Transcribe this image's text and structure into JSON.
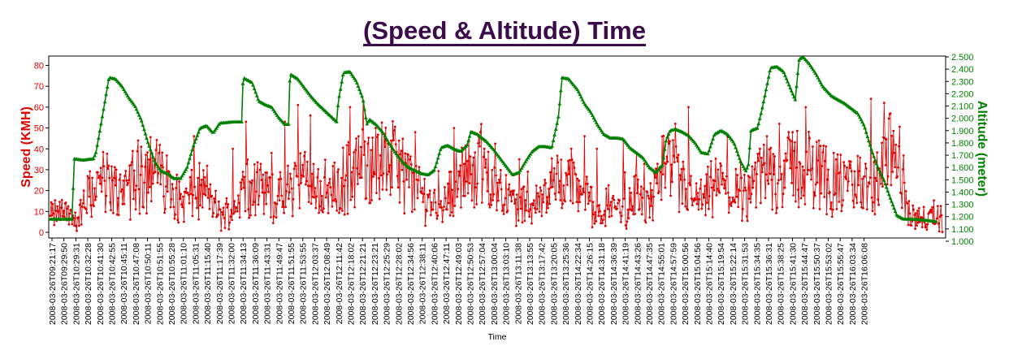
{
  "chart_data": {
    "type": "line",
    "title": "(Speed & Altitude) Time",
    "xlabel": "Time",
    "ylabel_left": "Speed (KMH)",
    "ylabel_right": "Altitude (meter)",
    "ylim_left": [
      0,
      83
    ],
    "ylim_right": [
      1000,
      2500
    ],
    "yticks_left": [
      "0",
      "10",
      "20",
      "30",
      "40",
      "50",
      "60",
      "70",
      "80"
    ],
    "yticks_right": [
      "1.000",
      "1.100",
      "1.200",
      "1.300",
      "1.400",
      "1.500",
      "1.600",
      "1.700",
      "1.800",
      "1.900",
      "2.000",
      "2.100",
      "2.200",
      "2.300",
      "2.400",
      "2.500"
    ],
    "x_tick_labels": [
      "2008-03-26T09:21:17",
      "2008-03-26T09:29:50",
      "2008-03-26T10:29:31",
      "2008-03-26T10:32:28",
      "2008-03-26T10:41:30",
      "2008-03-26T10:42:55",
      "2008-03-26T10:45:11",
      "2008-03-26T10:47:08",
      "2008-03-26T10:50:11",
      "2008-03-26T10:51:55",
      "2008-03-26T10:55:28",
      "2008-03-26T11:01:10",
      "2008-03-26T11:05:31",
      "2008-03-26T11:15:40",
      "2008-03-26T11:17:39",
      "2008-03-26T11:32:00",
      "2008-03-26T11:34:13",
      "2008-03-26T11:36:09",
      "2008-03-26T11:43:31",
      "2008-03-26T11:49:47",
      "2008-03-26T11:51:55",
      "2008-03-26T11:53:55",
      "2008-03-26T12:03:37",
      "2008-03-26T12:08:49",
      "2008-03-26T12:11:42",
      "2008-03-26T12:18:02",
      "2008-03-26T12:21:21",
      "2008-03-26T12:23:21",
      "2008-03-26T12:25:29",
      "2008-03-26T12:28:02",
      "2008-03-26T12:34:56",
      "2008-03-26T12:38:11",
      "2008-03-26T12:40:06",
      "2008-03-26T12:47:11",
      "2008-03-26T12:49:03",
      "2008-03-26T12:50:53",
      "2008-03-26T12:57:04",
      "2008-03-26T13:00:04",
      "2008-03-26T13:03:10",
      "2008-03-26T13:11:38",
      "2008-03-26T13:13:55",
      "2008-03-26T13:17:42",
      "2008-03-26T13:20:05",
      "2008-03-26T13:25:36",
      "2008-03-26T14:22:34",
      "2008-03-26T14:26:15",
      "2008-03-26T14:31:18",
      "2008-03-26T14:36:39",
      "2008-03-26T14:41:19",
      "2008-03-26T14:43:26",
      "2008-03-26T14:47:35",
      "2008-03-26T14:55:01",
      "2008-03-26T14:57:59",
      "2008-03-26T15:00:56",
      "2008-03-26T15:04:56",
      "2008-03-26T15:14:40",
      "2008-03-26T15:19:54",
      "2008-03-26T15:22:14",
      "2008-03-26T15:31:53",
      "2008-03-26T15:34:35",
      "2008-03-26T15:36:31",
      "2008-03-26T15:38:25",
      "2008-03-26T15:41:30",
      "2008-03-26T15:44:47",
      "2008-03-26T15:50:37",
      "2008-03-26T15:53:02",
      "2008-03-26T15:55:47",
      "2008-03-26T16:03:34",
      "2008-03-26T16:06:08"
    ],
    "legend": "none",
    "grid": false,
    "series": [
      {
        "name": "Speed (KMH)",
        "axis": "left",
        "color": "#e00000",
        "marker": "circle",
        "anchors": [
          [
            0,
            8
          ],
          [
            1,
            10
          ],
          [
            2,
            5
          ],
          [
            3,
            18
          ],
          [
            4,
            25
          ],
          [
            5,
            20
          ],
          [
            6,
            22
          ],
          [
            7,
            28
          ],
          [
            8,
            30
          ],
          [
            9,
            24
          ],
          [
            10,
            14
          ],
          [
            11,
            18
          ],
          [
            12,
            20
          ],
          [
            13,
            8
          ],
          [
            14,
            10
          ],
          [
            15,
            25
          ],
          [
            16,
            22
          ],
          [
            17,
            18
          ],
          [
            18,
            15
          ],
          [
            19,
            28
          ],
          [
            20,
            22
          ],
          [
            21,
            20
          ],
          [
            22,
            20
          ],
          [
            23,
            28
          ],
          [
            24,
            32
          ],
          [
            25,
            30
          ],
          [
            26,
            36
          ],
          [
            27,
            30
          ],
          [
            28,
            22
          ],
          [
            29,
            16
          ],
          [
            30,
            12
          ],
          [
            31,
            24
          ],
          [
            32,
            28
          ],
          [
            33,
            32
          ],
          [
            34,
            26
          ],
          [
            35,
            18
          ],
          [
            36,
            12
          ],
          [
            37,
            14
          ],
          [
            38,
            18
          ],
          [
            39,
            26
          ],
          [
            40,
            24
          ],
          [
            41,
            20
          ],
          [
            42,
            6
          ],
          [
            43,
            14
          ],
          [
            44,
            10
          ],
          [
            45,
            18
          ],
          [
            46,
            14
          ],
          [
            47,
            30
          ],
          [
            48,
            26
          ],
          [
            49,
            18
          ],
          [
            50,
            14
          ],
          [
            51,
            22
          ],
          [
            52,
            18
          ],
          [
            53,
            16
          ],
          [
            54,
            24
          ],
          [
            55,
            28
          ],
          [
            56,
            26
          ],
          [
            57,
            32
          ],
          [
            58,
            30
          ],
          [
            59,
            28
          ],
          [
            60,
            24
          ],
          [
            61,
            22
          ],
          [
            62,
            24
          ],
          [
            63,
            18
          ],
          [
            64,
            32
          ],
          [
            65,
            38
          ],
          [
            66,
            8
          ],
          [
            67,
            6
          ],
          [
            68,
            6
          ]
        ],
        "spikes": [
          [
            7,
            41
          ],
          [
            8,
            35
          ],
          [
            11,
            46
          ],
          [
            14,
            40
          ],
          [
            15,
            53
          ],
          [
            17,
            38
          ],
          [
            18,
            53
          ],
          [
            19,
            61
          ],
          [
            20,
            56
          ],
          [
            23,
            60
          ],
          [
            24,
            63
          ],
          [
            25,
            50
          ],
          [
            28,
            48
          ],
          [
            31,
            50
          ],
          [
            33,
            48
          ],
          [
            36,
            35
          ],
          [
            40,
            40
          ],
          [
            41,
            46
          ],
          [
            42,
            40
          ],
          [
            44,
            44
          ],
          [
            45,
            38
          ],
          [
            48,
            52
          ],
          [
            49,
            60
          ],
          [
            52,
            46
          ],
          [
            53,
            34
          ],
          [
            55,
            46
          ],
          [
            56,
            52
          ],
          [
            57,
            48
          ],
          [
            58,
            60
          ],
          [
            59,
            44
          ],
          [
            63,
            64
          ],
          [
            64,
            62
          ]
        ]
      },
      {
        "name": "Altitude (meter)",
        "axis": "right",
        "color": "#008000",
        "marker": "triangle",
        "anchors": [
          [
            0,
            1180
          ],
          [
            1,
            1180
          ],
          [
            1.7,
            1180
          ],
          [
            1.8,
            1670
          ],
          [
            2.5,
            1660
          ],
          [
            3.3,
            1670
          ],
          [
            3.5,
            1720
          ],
          [
            4.0,
            2020
          ],
          [
            4.5,
            2330
          ],
          [
            5.0,
            2320
          ],
          [
            5.5,
            2260
          ],
          [
            6.0,
            2170
          ],
          [
            6.5,
            2100
          ],
          [
            7.0,
            1980
          ],
          [
            7.5,
            1800
          ],
          [
            8.0,
            1650
          ],
          [
            8.5,
            1570
          ],
          [
            9.0,
            1550
          ],
          [
            9.5,
            1510
          ],
          [
            10.0,
            1510
          ],
          [
            10.5,
            1600
          ],
          [
            11.0,
            1780
          ],
          [
            11.5,
            1920
          ],
          [
            12.0,
            1940
          ],
          [
            12.5,
            1880
          ],
          [
            13.0,
            1960
          ],
          [
            14.0,
            1970
          ],
          [
            14.7,
            1970
          ],
          [
            14.8,
            2330
          ],
          [
            15.5,
            2290
          ],
          [
            16.0,
            2140
          ],
          [
            16.5,
            2110
          ],
          [
            17.0,
            2090
          ],
          [
            17.5,
            2010
          ],
          [
            18.0,
            1950
          ],
          [
            18.3,
            1950
          ],
          [
            18.4,
            2360
          ],
          [
            19.0,
            2320
          ],
          [
            19.5,
            2250
          ],
          [
            20.0,
            2180
          ],
          [
            20.5,
            2120
          ],
          [
            21.0,
            2070
          ],
          [
            21.5,
            2020
          ],
          [
            22.0,
            1970
          ],
          [
            22.1,
            2130
          ],
          [
            22.5,
            2370
          ],
          [
            23.0,
            2380
          ],
          [
            23.5,
            2300
          ],
          [
            24.0,
            2160
          ],
          [
            24.3,
            1950
          ],
          [
            24.5,
            1990
          ],
          [
            25.0,
            1950
          ],
          [
            25.5,
            1890
          ],
          [
            26.0,
            1800
          ],
          [
            26.5,
            1720
          ],
          [
            27.0,
            1650
          ],
          [
            27.5,
            1600
          ],
          [
            28.5,
            1550
          ],
          [
            29.0,
            1540
          ],
          [
            29.5,
            1580
          ],
          [
            30.0,
            1760
          ],
          [
            30.5,
            1780
          ],
          [
            31.0,
            1750
          ],
          [
            31.5,
            1730
          ],
          [
            32.0,
            1780
          ],
          [
            32.3,
            1890
          ],
          [
            32.8,
            1870
          ],
          [
            33.5,
            1810
          ],
          [
            34.0,
            1750
          ],
          [
            34.5,
            1680
          ],
          [
            35.0,
            1610
          ],
          [
            35.5,
            1540
          ],
          [
            36.0,
            1560
          ],
          [
            36.5,
            1650
          ],
          [
            37.0,
            1730
          ],
          [
            37.5,
            1770
          ],
          [
            38.0,
            1770
          ],
          [
            38.5,
            1760
          ],
          [
            39.0,
            2000
          ],
          [
            39.3,
            2330
          ],
          [
            39.8,
            2320
          ],
          [
            40.5,
            2230
          ],
          [
            41.0,
            2120
          ],
          [
            41.5,
            2050
          ],
          [
            42.0,
            1950
          ],
          [
            42.5,
            1870
          ],
          [
            43.0,
            1840
          ],
          [
            43.5,
            1840
          ],
          [
            44.0,
            1830
          ],
          [
            44.5,
            1760
          ],
          [
            45.0,
            1720
          ],
          [
            45.5,
            1680
          ],
          [
            46.0,
            1600
          ],
          [
            46.5,
            1560
          ],
          [
            47.0,
            1620
          ],
          [
            47.3,
            1830
          ],
          [
            47.6,
            1900
          ],
          [
            48.0,
            1910
          ],
          [
            48.5,
            1890
          ],
          [
            49.0,
            1860
          ],
          [
            49.5,
            1800
          ],
          [
            50.0,
            1720
          ],
          [
            50.5,
            1710
          ],
          [
            51.0,
            1870
          ],
          [
            51.5,
            1900
          ],
          [
            52.0,
            1870
          ],
          [
            52.5,
            1800
          ],
          [
            53.0,
            1650
          ],
          [
            53.4,
            1570
          ],
          [
            53.6,
            1620
          ],
          [
            53.8,
            1900
          ],
          [
            54.3,
            1920
          ],
          [
            54.6,
            2050
          ],
          [
            55.0,
            2250
          ],
          [
            55.3,
            2410
          ],
          [
            55.8,
            2420
          ],
          [
            56.3,
            2380
          ],
          [
            56.8,
            2250
          ],
          [
            57.2,
            2150
          ],
          [
            57.5,
            2480
          ],
          [
            57.8,
            2500
          ],
          [
            58.3,
            2440
          ],
          [
            58.8,
            2360
          ],
          [
            59.3,
            2260
          ],
          [
            60.0,
            2180
          ],
          [
            60.5,
            2150
          ],
          [
            61.0,
            2120
          ],
          [
            61.5,
            2080
          ],
          [
            62.0,
            2040
          ],
          [
            62.5,
            1940
          ],
          [
            63.0,
            1760
          ],
          [
            63.5,
            1610
          ],
          [
            64.0,
            1500
          ],
          [
            64.5,
            1350
          ],
          [
            65.0,
            1210
          ],
          [
            65.5,
            1180
          ],
          [
            66.0,
            1180
          ],
          [
            66.8,
            1175
          ],
          [
            68.0,
            1160
          ]
        ]
      }
    ]
  }
}
